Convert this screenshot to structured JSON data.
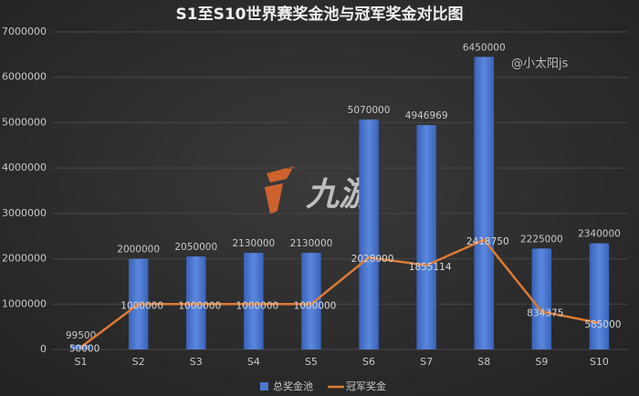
{
  "chart_data": {
    "type": "combo",
    "title": "S1至S10世界赛奖金池与冠军奖金对比图",
    "categories": [
      "S1",
      "S2",
      "S3",
      "S4",
      "S5",
      "S6",
      "S7",
      "S8",
      "S9",
      "S10"
    ],
    "series": [
      {
        "name": "总奖金池",
        "type": "bar",
        "color": "#4a78d0",
        "values": [
          99500,
          2000000,
          2050000,
          2130000,
          2130000,
          5070000,
          4946969,
          6450000,
          2225000,
          2340000
        ]
      },
      {
        "name": "冠军奖金",
        "type": "line",
        "color": "#e07a34",
        "values": [
          50000,
          1000000,
          1000000,
          1000000,
          1000000,
          2028000,
          1855114,
          2418750,
          834375,
          585000
        ]
      }
    ],
    "ylim": [
      0,
      7000000
    ],
    "yticks": [
      0,
      1000000,
      2000000,
      3000000,
      4000000,
      5000000,
      6000000,
      7000000
    ],
    "grid": true,
    "legend": "bottom",
    "annotations": [
      "@小太阳js",
      "九游"
    ]
  }
}
